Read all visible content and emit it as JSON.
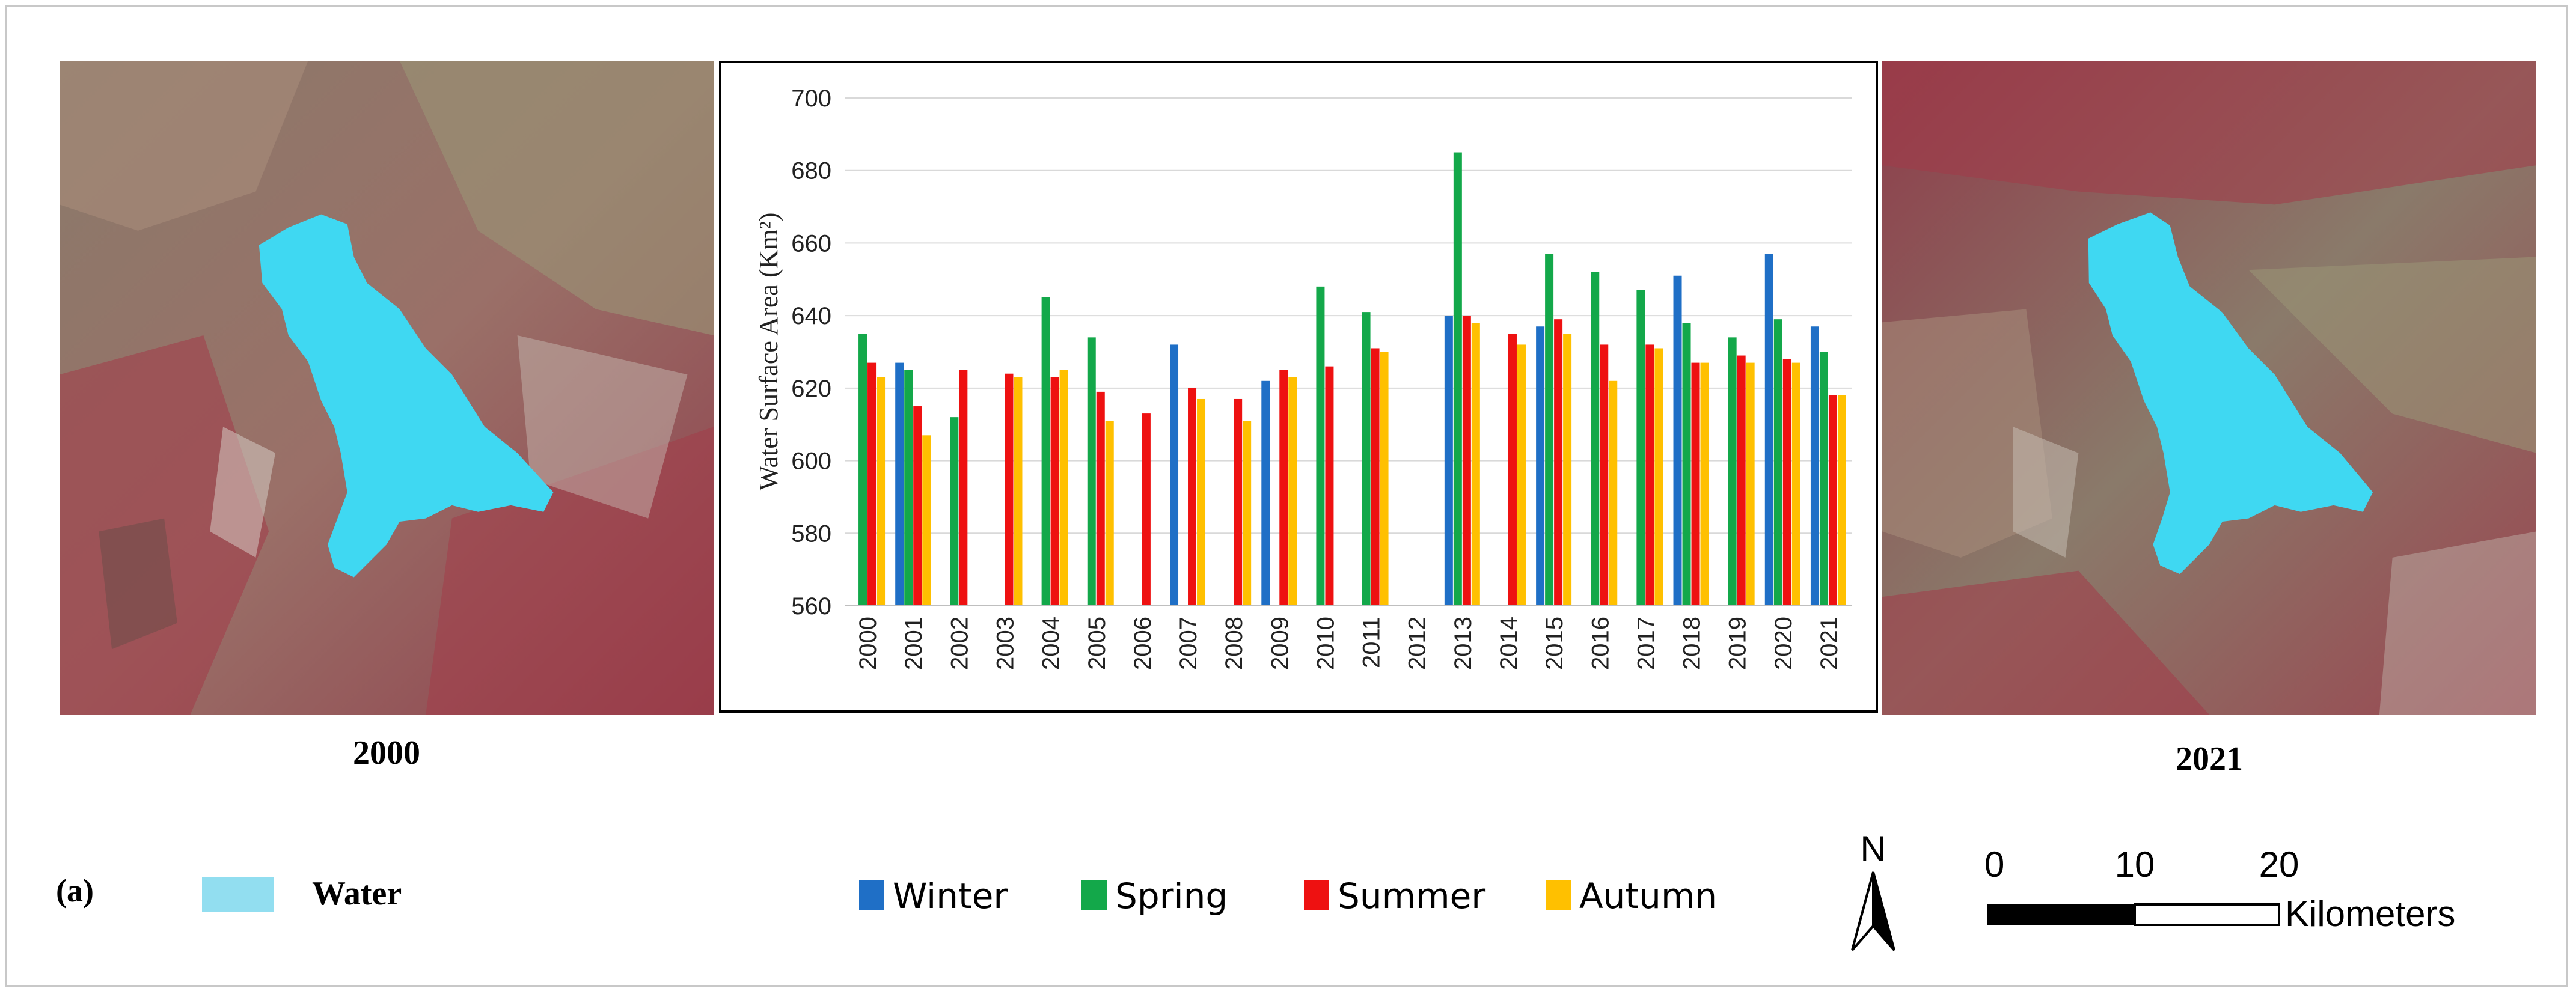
{
  "maps": {
    "left_year": "2000",
    "right_year": "2021",
    "water_color": "#3fd8f2",
    "background_tones": [
      "#8a7a6a",
      "#a33a48",
      "#9a9274",
      "#c9c2b8"
    ]
  },
  "legend": {
    "panel_label": "(a)",
    "water_label": "Water",
    "water_swatch_color": "#92def0",
    "series": [
      {
        "name": "Winter",
        "color": "#1f6fc6"
      },
      {
        "name": "Spring",
        "color": "#13a84a"
      },
      {
        "name": "Summer",
        "color": "#ee1111"
      },
      {
        "name": "Autumn",
        "color": "#ffc000"
      }
    ]
  },
  "north_arrow": {
    "label": "N"
  },
  "scalebar": {
    "ticks": [
      "0",
      "10",
      "20"
    ],
    "unit": "Kilometers"
  },
  "chart_data": {
    "type": "bar",
    "ylabel": "Water Surface Area (Km²)",
    "ylim": [
      560,
      700
    ],
    "yticks": [
      560,
      580,
      600,
      620,
      640,
      660,
      680,
      700
    ],
    "grid": true,
    "categories": [
      "2000",
      "2001",
      "2002",
      "2003",
      "2004",
      "2005",
      "2006",
      "2007",
      "2008",
      "2009",
      "2010",
      "2011",
      "2012",
      "2013",
      "2014",
      "2015",
      "2016",
      "2017",
      "2018",
      "2019",
      "2020",
      "2021"
    ],
    "series": [
      {
        "name": "Winter",
        "color": "#1f6fc6",
        "values": [
          null,
          627,
          null,
          null,
          null,
          null,
          null,
          632,
          null,
          622,
          null,
          null,
          null,
          640,
          null,
          637,
          null,
          null,
          651,
          null,
          657,
          637
        ]
      },
      {
        "name": "Spring",
        "color": "#13a84a",
        "values": [
          635,
          625,
          612,
          null,
          645,
          634,
          null,
          null,
          null,
          null,
          648,
          641,
          null,
          685,
          null,
          657,
          652,
          647,
          638,
          634,
          639,
          630
        ]
      },
      {
        "name": "Summer",
        "color": "#ee1111",
        "values": [
          627,
          615,
          625,
          624,
          623,
          619,
          613,
          620,
          617,
          625,
          626,
          631,
          null,
          640,
          635,
          639,
          632,
          632,
          627,
          629,
          628,
          618
        ]
      },
      {
        "name": "Autumn",
        "color": "#ffc000",
        "values": [
          623,
          607,
          null,
          623,
          625,
          611,
          null,
          617,
          611,
          623,
          null,
          630,
          null,
          638,
          632,
          635,
          622,
          631,
          627,
          627,
          627,
          618
        ]
      }
    ]
  }
}
